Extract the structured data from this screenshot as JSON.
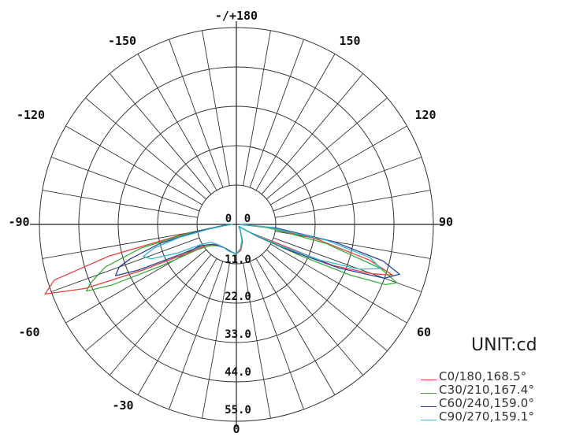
{
  "chart_data": {
    "type": "polar",
    "unit_label": "UNIT:cd",
    "top_label": "-/+180",
    "angle_labels": [
      "-/+180",
      "150",
      "120",
      "90",
      "60",
      "-30",
      "0",
      "-60",
      "-90",
      "-120",
      "-150"
    ],
    "ring_labels": [
      "11.0",
      "22.0",
      "33.0",
      "44.0",
      "55.0"
    ],
    "center_labels": [
      "0",
      "0"
    ],
    "rmax": 60,
    "series": [
      {
        "name": "C0/180,168.5°",
        "color": "#e8403c",
        "points": [
          [
            -90,
            1
          ],
          [
            -85,
            4
          ],
          [
            -80,
            15
          ],
          [
            -76,
            40
          ],
          [
            -73,
            58
          ],
          [
            -70,
            62
          ],
          [
            -67,
            50
          ],
          [
            -64,
            32
          ],
          [
            -60,
            18
          ],
          [
            -55,
            11
          ],
          [
            -45,
            8.5
          ],
          [
            -30,
            8
          ],
          [
            -15,
            8.5
          ],
          [
            0,
            9
          ],
          [
            10,
            8
          ],
          [
            20,
            5.5
          ],
          [
            35,
            2
          ],
          [
            50,
            1
          ],
          [
            60,
            5
          ],
          [
            65,
            13
          ],
          [
            67,
            32
          ],
          [
            70,
            44
          ],
          [
            72,
            50
          ],
          [
            75,
            42
          ],
          [
            80,
            24
          ],
          [
            85,
            8
          ],
          [
            90,
            1
          ]
        ]
      },
      {
        "name": "C30/210,167.4°",
        "color": "#3aaa3a",
        "points": [
          [
            -90,
            1
          ],
          [
            -85,
            4
          ],
          [
            -80,
            14
          ],
          [
            -76,
            30
          ],
          [
            -72,
            42
          ],
          [
            -68,
            48
          ],
          [
            -66,
            50
          ],
          [
            -64,
            42
          ],
          [
            -61,
            26
          ],
          [
            -57,
            14
          ],
          [
            -50,
            10
          ],
          [
            -40,
            8.5
          ],
          [
            -25,
            8
          ],
          [
            -10,
            8.5
          ],
          [
            0,
            9
          ],
          [
            10,
            7.5
          ],
          [
            20,
            5
          ],
          [
            35,
            2
          ],
          [
            50,
            1
          ],
          [
            60,
            7
          ],
          [
            64,
            22
          ],
          [
            66,
            38
          ],
          [
            68,
            49
          ],
          [
            70,
            52
          ],
          [
            73,
            46
          ],
          [
            78,
            28
          ],
          [
            84,
            10
          ],
          [
            90,
            1
          ]
        ]
      },
      {
        "name": "C60/240,159.0°",
        "color": "#2d3f9e",
        "points": [
          [
            -90,
            1
          ],
          [
            -85,
            4
          ],
          [
            -80,
            12
          ],
          [
            -76,
            24
          ],
          [
            -72,
            34
          ],
          [
            -70,
            38
          ],
          [
            -67,
            40
          ],
          [
            -65,
            33
          ],
          [
            -62,
            20
          ],
          [
            -58,
            12
          ],
          [
            -50,
            9.5
          ],
          [
            -40,
            8.5
          ],
          [
            -25,
            8
          ],
          [
            -10,
            8.5
          ],
          [
            0,
            9
          ],
          [
            10,
            7.5
          ],
          [
            20,
            5
          ],
          [
            35,
            2
          ],
          [
            50,
            1
          ],
          [
            60,
            6
          ],
          [
            64,
            18
          ],
          [
            67,
            34
          ],
          [
            70,
            48
          ],
          [
            73,
            52
          ],
          [
            76,
            46
          ],
          [
            80,
            30
          ],
          [
            85,
            12
          ],
          [
            90,
            1
          ]
        ]
      },
      {
        "name": "C90/270,159.1°",
        "color": "#35b8c8",
        "points": [
          [
            -90,
            1
          ],
          [
            -85,
            3
          ],
          [
            -80,
            9
          ],
          [
            -77,
            18
          ],
          [
            -74,
            26
          ],
          [
            -71,
            30
          ],
          [
            -68,
            28
          ],
          [
            -64,
            20
          ],
          [
            -60,
            12
          ],
          [
            -55,
            9.5
          ],
          [
            -45,
            8.5
          ],
          [
            -30,
            8
          ],
          [
            -15,
            8.5
          ],
          [
            0,
            9
          ],
          [
            10,
            7.5
          ],
          [
            20,
            5
          ],
          [
            35,
            2
          ],
          [
            50,
            1
          ],
          [
            60,
            5
          ],
          [
            64,
            15
          ],
          [
            67,
            28
          ],
          [
            70,
            40
          ],
          [
            73,
            46
          ],
          [
            76,
            42
          ],
          [
            80,
            28
          ],
          [
            85,
            10
          ],
          [
            90,
            1
          ]
        ]
      }
    ]
  },
  "legend": [
    {
      "label": "C0/180,168.5°",
      "color": "#e8403c"
    },
    {
      "label": "C30/210,167.4°",
      "color": "#3aaa3a"
    },
    {
      "label": "C60/240,159.0°",
      "color": "#2d3f9e"
    },
    {
      "label": "C90/270,159.1°",
      "color": "#35b8c8"
    }
  ]
}
